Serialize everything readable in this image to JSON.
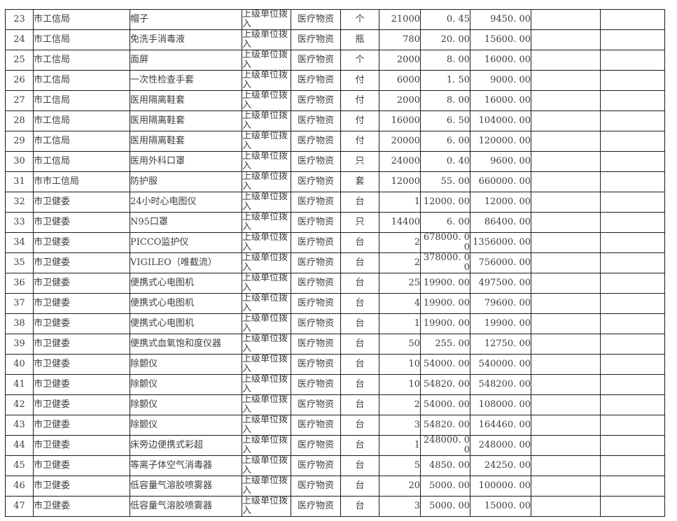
{
  "page": {
    "background_color": "#ffffff",
    "text_color": "#3d3d3d",
    "border_color": "#1c1c1c"
  },
  "table": {
    "columns": [
      {
        "key": "num",
        "name": "row-number-cell"
      },
      {
        "key": "org",
        "name": "organization-cell"
      },
      {
        "key": "item",
        "name": "item-name-cell"
      },
      {
        "key": "fund",
        "name": "funding-source-cell"
      },
      {
        "key": "cat",
        "name": "category-cell"
      },
      {
        "key": "unit",
        "name": "unit-cell"
      },
      {
        "key": "qty",
        "name": "quantity-cell"
      },
      {
        "key": "price",
        "name": "unit-price-cell"
      },
      {
        "key": "total",
        "name": "total-amount-cell"
      },
      {
        "key": "extra1",
        "name": "empty-cell"
      },
      {
        "key": "extra2",
        "name": "empty-cell"
      }
    ],
    "rows": [
      {
        "num": "23",
        "org": "市工信局",
        "item": "帽子",
        "fund": "上级单位拨入",
        "cat": "医疗物资",
        "unit": "个",
        "qty": "21000",
        "price": "0. 45",
        "total": "9450. 00",
        "extra1": "",
        "extra2": ""
      },
      {
        "num": "24",
        "org": "市工信局",
        "item": "免洗手消毒液",
        "fund": "上级单位拨入",
        "cat": "医疗物资",
        "unit": "瓶",
        "qty": "780",
        "price": "20. 00",
        "total": "15600. 00",
        "extra1": "",
        "extra2": ""
      },
      {
        "num": "25",
        "org": "市工信局",
        "item": "面屏",
        "fund": "上级单位拨入",
        "cat": "医疗物资",
        "unit": "个",
        "qty": "2000",
        "price": "8. 00",
        "total": "16000. 00",
        "extra1": "",
        "extra2": ""
      },
      {
        "num": "26",
        "org": "市工信局",
        "item": "一次性检查手套",
        "fund": "上级单位拨入",
        "cat": "医疗物资",
        "unit": "付",
        "qty": "6000",
        "price": "1. 50",
        "total": "9000. 00",
        "extra1": "",
        "extra2": ""
      },
      {
        "num": "27",
        "org": "市工信局",
        "item": "医用隔离鞋套",
        "fund": "上级单位拨入",
        "cat": "医疗物资",
        "unit": "付",
        "qty": "2000",
        "price": "8. 00",
        "total": "16000. 00",
        "extra1": "",
        "extra2": ""
      },
      {
        "num": "28",
        "org": "市工信局",
        "item": "医用隔离鞋套",
        "fund": "上级单位拨入",
        "cat": "医疗物资",
        "unit": "付",
        "qty": "16000",
        "price": "6. 50",
        "total": "104000. 00",
        "extra1": "",
        "extra2": ""
      },
      {
        "num": "29",
        "org": "市工信局",
        "item": "医用隔离鞋套",
        "fund": "上级单位拨入",
        "cat": "医疗物资",
        "unit": "付",
        "qty": "20000",
        "price": "6. 00",
        "total": "120000. 00",
        "extra1": "",
        "extra2": ""
      },
      {
        "num": "30",
        "org": "市工信局",
        "item": "医用外科口罩",
        "fund": "上级单位拨入",
        "cat": "医疗物资",
        "unit": "只",
        "qty": "24000",
        "price": "0. 40",
        "total": "9600. 00",
        "extra1": "",
        "extra2": ""
      },
      {
        "num": "31",
        "org": "市市工信局",
        "item": "防护服",
        "fund": "上级单位拨入",
        "cat": "医疗物资",
        "unit": "套",
        "qty": "12000",
        "price": "55. 00",
        "total": "660000. 00",
        "extra1": "",
        "extra2": ""
      },
      {
        "num": "32",
        "org": "市卫健委",
        "item": "24小时心电图仪",
        "fund": "上级单位拨入",
        "cat": "医疗物资",
        "unit": "台",
        "qty": "1",
        "price": "12000. 00",
        "total": "12000. 00",
        "extra1": "",
        "extra2": ""
      },
      {
        "num": "33",
        "org": "市卫健委",
        "item": "N95口罩",
        "fund": "上级单位拨入",
        "cat": "医疗物资",
        "unit": "只",
        "qty": "14400",
        "price": "6. 00",
        "total": "86400. 00",
        "extra1": "",
        "extra2": ""
      },
      {
        "num": "34",
        "org": "市卫健委",
        "item": "PICCO监护仪",
        "fund": "上级单位拨入",
        "cat": "医疗物资",
        "unit": "台",
        "qty": "2",
        "price": "678000. 00",
        "total": "1356000. 00",
        "extra1": "",
        "extra2": ""
      },
      {
        "num": "35",
        "org": "市卫健委",
        "item": "VIGILEO（唯截流）",
        "fund": "上级单位拨入",
        "cat": "医疗物资",
        "unit": "台",
        "qty": "2",
        "price": "378000. 00",
        "total": "756000. 00",
        "extra1": "",
        "extra2": ""
      },
      {
        "num": "36",
        "org": "市卫健委",
        "item": "便携式心电图机",
        "fund": "上级单位拨入",
        "cat": "医疗物资",
        "unit": "台",
        "qty": "25",
        "price": "19900. 00",
        "total": "497500. 00",
        "extra1": "",
        "extra2": ""
      },
      {
        "num": "37",
        "org": "市卫健委",
        "item": "便携式心电图机",
        "fund": "上级单位拨入",
        "cat": "医疗物资",
        "unit": "台",
        "qty": "4",
        "price": "19900. 00",
        "total": "79600. 00",
        "extra1": "",
        "extra2": ""
      },
      {
        "num": "38",
        "org": "市卫健委",
        "item": "便携式心电图机",
        "fund": "上级单位拨入",
        "cat": "医疗物资",
        "unit": "台",
        "qty": "1",
        "price": "19900. 00",
        "total": "19900. 00",
        "extra1": "",
        "extra2": ""
      },
      {
        "num": "39",
        "org": "市卫健委",
        "item": "便携式血氧饱和度仪器",
        "fund": "上级单位拨入",
        "cat": "医疗物资",
        "unit": "台",
        "qty": "50",
        "price": "255. 00",
        "total": "12750. 00",
        "extra1": "",
        "extra2": ""
      },
      {
        "num": "40",
        "org": "市卫健委",
        "item": "除颤仪",
        "fund": "上级单位拨入",
        "cat": "医疗物资",
        "unit": "台",
        "qty": "10",
        "price": "54000. 00",
        "total": "540000. 00",
        "extra1": "",
        "extra2": ""
      },
      {
        "num": "41",
        "org": "市卫健委",
        "item": "除颤仪",
        "fund": "上级单位拨入",
        "cat": "医疗物资",
        "unit": "台",
        "qty": "10",
        "price": "54820. 00",
        "total": "548200. 00",
        "extra1": "",
        "extra2": ""
      },
      {
        "num": "42",
        "org": "市卫健委",
        "item": "除颤仪",
        "fund": "上级单位拨入",
        "cat": "医疗物资",
        "unit": "台",
        "qty": "2",
        "price": "54000. 00",
        "total": "108000. 00",
        "extra1": "",
        "extra2": ""
      },
      {
        "num": "43",
        "org": "市卫健委",
        "item": "除颤仪",
        "fund": "上级单位拨入",
        "cat": "医疗物资",
        "unit": "台",
        "qty": "3",
        "price": "54820. 00",
        "total": "164460. 00",
        "extra1": "",
        "extra2": ""
      },
      {
        "num": "44",
        "org": "市卫健委",
        "item": "床旁边便携式彩超",
        "fund": "上级单位拨入",
        "cat": "医疗物资",
        "unit": "台",
        "qty": "1",
        "price": "248000. 00",
        "total": "248000. 00",
        "extra1": "",
        "extra2": ""
      },
      {
        "num": "45",
        "org": "市卫健委",
        "item": "等离子体空气消毒器",
        "fund": "上级单位拨入",
        "cat": "医疗物资",
        "unit": "台",
        "qty": "5",
        "price": "4850. 00",
        "total": "24250. 00",
        "extra1": "",
        "extra2": ""
      },
      {
        "num": "46",
        "org": "市卫健委",
        "item": "低容量气溶胶喷雾器",
        "fund": "上级单位拨入",
        "cat": "医疗物资",
        "unit": "台",
        "qty": "20",
        "price": "5000. 00",
        "total": "100000. 00",
        "extra1": "",
        "extra2": ""
      },
      {
        "num": "47",
        "org": "市卫健委",
        "item": "低容量气溶胶喷雾器",
        "fund": "上级单位拨入",
        "cat": "医疗物资",
        "unit": "台",
        "qty": "3",
        "price": "5000. 00",
        "total": "15000. 00",
        "extra1": "",
        "extra2": ""
      }
    ]
  }
}
